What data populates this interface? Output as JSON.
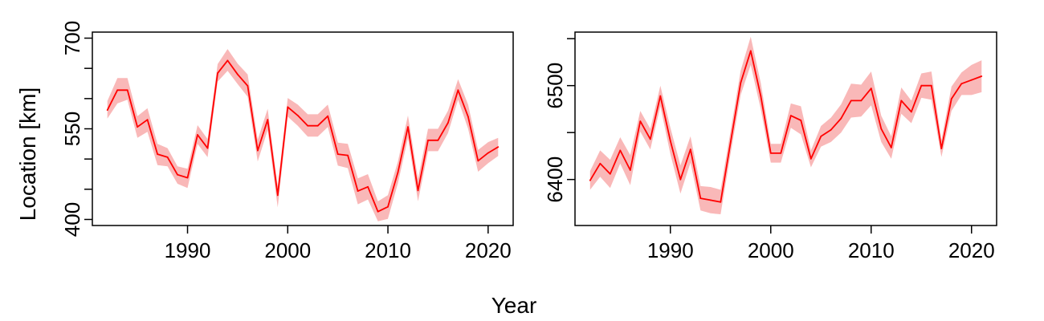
{
  "colors": {
    "line": "#ff0000",
    "band": "#f9b8b8",
    "axis": "#000000",
    "background": "#ffffff"
  },
  "figure": {
    "xlabel": "Year",
    "ylabel": "Location [km]"
  },
  "chart_data": [
    {
      "type": "line",
      "title": "",
      "xlabel": "Year",
      "ylabel": "Location [km]",
      "xlim": [
        1980.5,
        2022.5
      ],
      "ylim": [
        390,
        710
      ],
      "x_ticks": [
        1990,
        2000,
        2010,
        2020
      ],
      "y_ticks": [
        400,
        450,
        500,
        550,
        600,
        650,
        700
      ],
      "y_tick_labels": [
        "400",
        "",
        "",
        "550",
        "",
        "",
        "700"
      ],
      "grid": false,
      "legend": "none",
      "x": [
        1982,
        1983,
        1984,
        1985,
        1986,
        1987,
        1988,
        1989,
        1990,
        1991,
        1992,
        1993,
        1994,
        1995,
        1996,
        1997,
        1998,
        1999,
        2000,
        2001,
        2002,
        2003,
        2004,
        2005,
        2006,
        2007,
        2008,
        2009,
        2010,
        2011,
        2012,
        2013,
        2014,
        2015,
        2016,
        2017,
        2018,
        2019,
        2020,
        2021
      ],
      "series": [
        {
          "values": [
            581,
            614,
            614,
            553,
            565,
            508,
            503,
            474,
            469,
            540,
            518,
            642,
            663,
            640,
            621,
            514,
            565,
            440,
            586,
            572,
            555,
            555,
            571,
            508,
            506,
            447,
            454,
            413,
            421,
            478,
            553,
            448,
            531,
            531,
            560,
            614,
            570,
            497,
            510,
            520
          ],
          "lower": [
            567,
            592,
            598,
            535,
            545,
            490,
            488,
            459,
            452,
            525,
            503,
            628,
            646,
            624,
            603,
            496,
            548,
            420,
            570,
            555,
            537,
            537,
            553,
            489,
            485,
            425,
            433,
            397,
            401,
            460,
            535,
            430,
            513,
            513,
            543,
            598,
            550,
            479,
            493,
            505
          ],
          "upper": [
            596,
            634,
            634,
            571,
            584,
            525,
            518,
            488,
            484,
            556,
            533,
            657,
            682,
            658,
            640,
            532,
            583,
            455,
            601,
            590,
            574,
            574,
            590,
            527,
            525,
            468,
            475,
            430,
            440,
            496,
            572,
            467,
            550,
            550,
            580,
            632,
            590,
            515,
            528,
            535
          ]
        }
      ]
    },
    {
      "type": "line",
      "title": "",
      "xlabel": "Year",
      "ylabel": "",
      "xlim": [
        1980.5,
        2022.5
      ],
      "ylim": [
        6351,
        6557
      ],
      "x_ticks": [
        1990,
        2000,
        2010,
        2020
      ],
      "y_ticks": [
        6400,
        6450,
        6500,
        6550
      ],
      "y_tick_labels": [
        "6400",
        "",
        "6500",
        ""
      ],
      "grid": false,
      "legend": "none",
      "x": [
        1982,
        1983,
        1984,
        1985,
        1986,
        1987,
        1988,
        1989,
        1990,
        1991,
        1992,
        1993,
        1994,
        1995,
        1996,
        1997,
        1998,
        1999,
        2000,
        2001,
        2002,
        2003,
        2004,
        2005,
        2006,
        2007,
        2008,
        2009,
        2010,
        2011,
        2012,
        2013,
        2014,
        2015,
        2016,
        2017,
        2018,
        2019,
        2020,
        2021
      ],
      "series": [
        {
          "values": [
            6399,
            6417,
            6406,
            6431,
            6410,
            6462,
            6443,
            6489,
            6441,
            6400,
            6432,
            6380,
            6378,
            6376,
            6440,
            6503,
            6537,
            6489,
            6428,
            6428,
            6468,
            6463,
            6422,
            6446,
            6453,
            6465,
            6484,
            6484,
            6497,
            6454,
            6434,
            6484,
            6472,
            6500,
            6500,
            6433,
            6486,
            6502,
            6506,
            6510
          ],
          "lower": [
            6389,
            6403,
            6391,
            6417,
            6394,
            6451,
            6432,
            6478,
            6427,
            6385,
            6418,
            6367,
            6364,
            6363,
            6428,
            6490,
            6522,
            6475,
            6418,
            6418,
            6455,
            6448,
            6413,
            6435,
            6440,
            6450,
            6466,
            6467,
            6479,
            6440,
            6422,
            6470,
            6460,
            6487,
            6485,
            6424,
            6473,
            6490,
            6490,
            6493
          ]
        }
      ]
    }
  ]
}
